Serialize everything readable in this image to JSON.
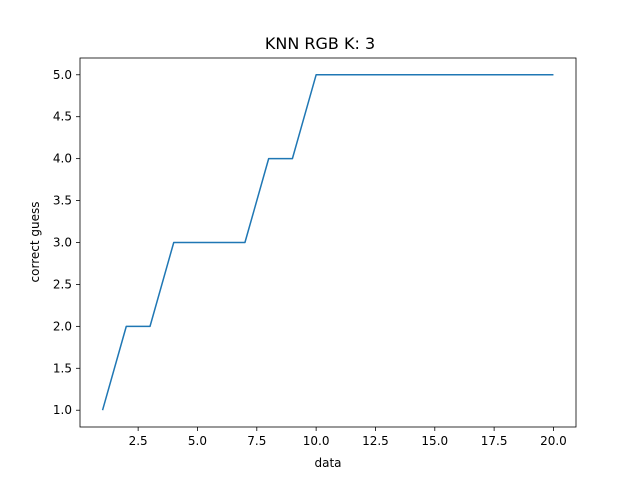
{
  "chart_data": {
    "type": "line",
    "title": "KNN RGB  K: 3",
    "xlabel": "data",
    "ylabel": "correct guess",
    "xlim": [
      0.05,
      20.95
    ],
    "ylim": [
      0.8,
      5.2
    ],
    "x_ticks": [
      2.5,
      5.0,
      7.5,
      10.0,
      12.5,
      15.0,
      17.5,
      20.0
    ],
    "x_tick_labels": [
      "2.5",
      "5.0",
      "7.5",
      "10.0",
      "12.5",
      "15.0",
      "17.5",
      "20.0"
    ],
    "y_ticks": [
      1.0,
      1.5,
      2.0,
      2.5,
      3.0,
      3.5,
      4.0,
      4.5,
      5.0
    ],
    "y_tick_labels": [
      "1.0",
      "1.5",
      "2.0",
      "2.5",
      "3.0",
      "3.5",
      "4.0",
      "4.5",
      "5.0"
    ],
    "grid": false,
    "series": [
      {
        "color": "#1f77b4",
        "x": [
          1,
          2,
          3,
          4,
          5,
          6,
          7,
          8,
          9,
          10,
          11,
          12,
          13,
          14,
          15,
          16,
          17,
          18,
          19,
          20
        ],
        "y": [
          1,
          2,
          2,
          3,
          3,
          3,
          3,
          4,
          4,
          5,
          5,
          5,
          5,
          5,
          5,
          5,
          5,
          5,
          5,
          5
        ]
      }
    ]
  }
}
